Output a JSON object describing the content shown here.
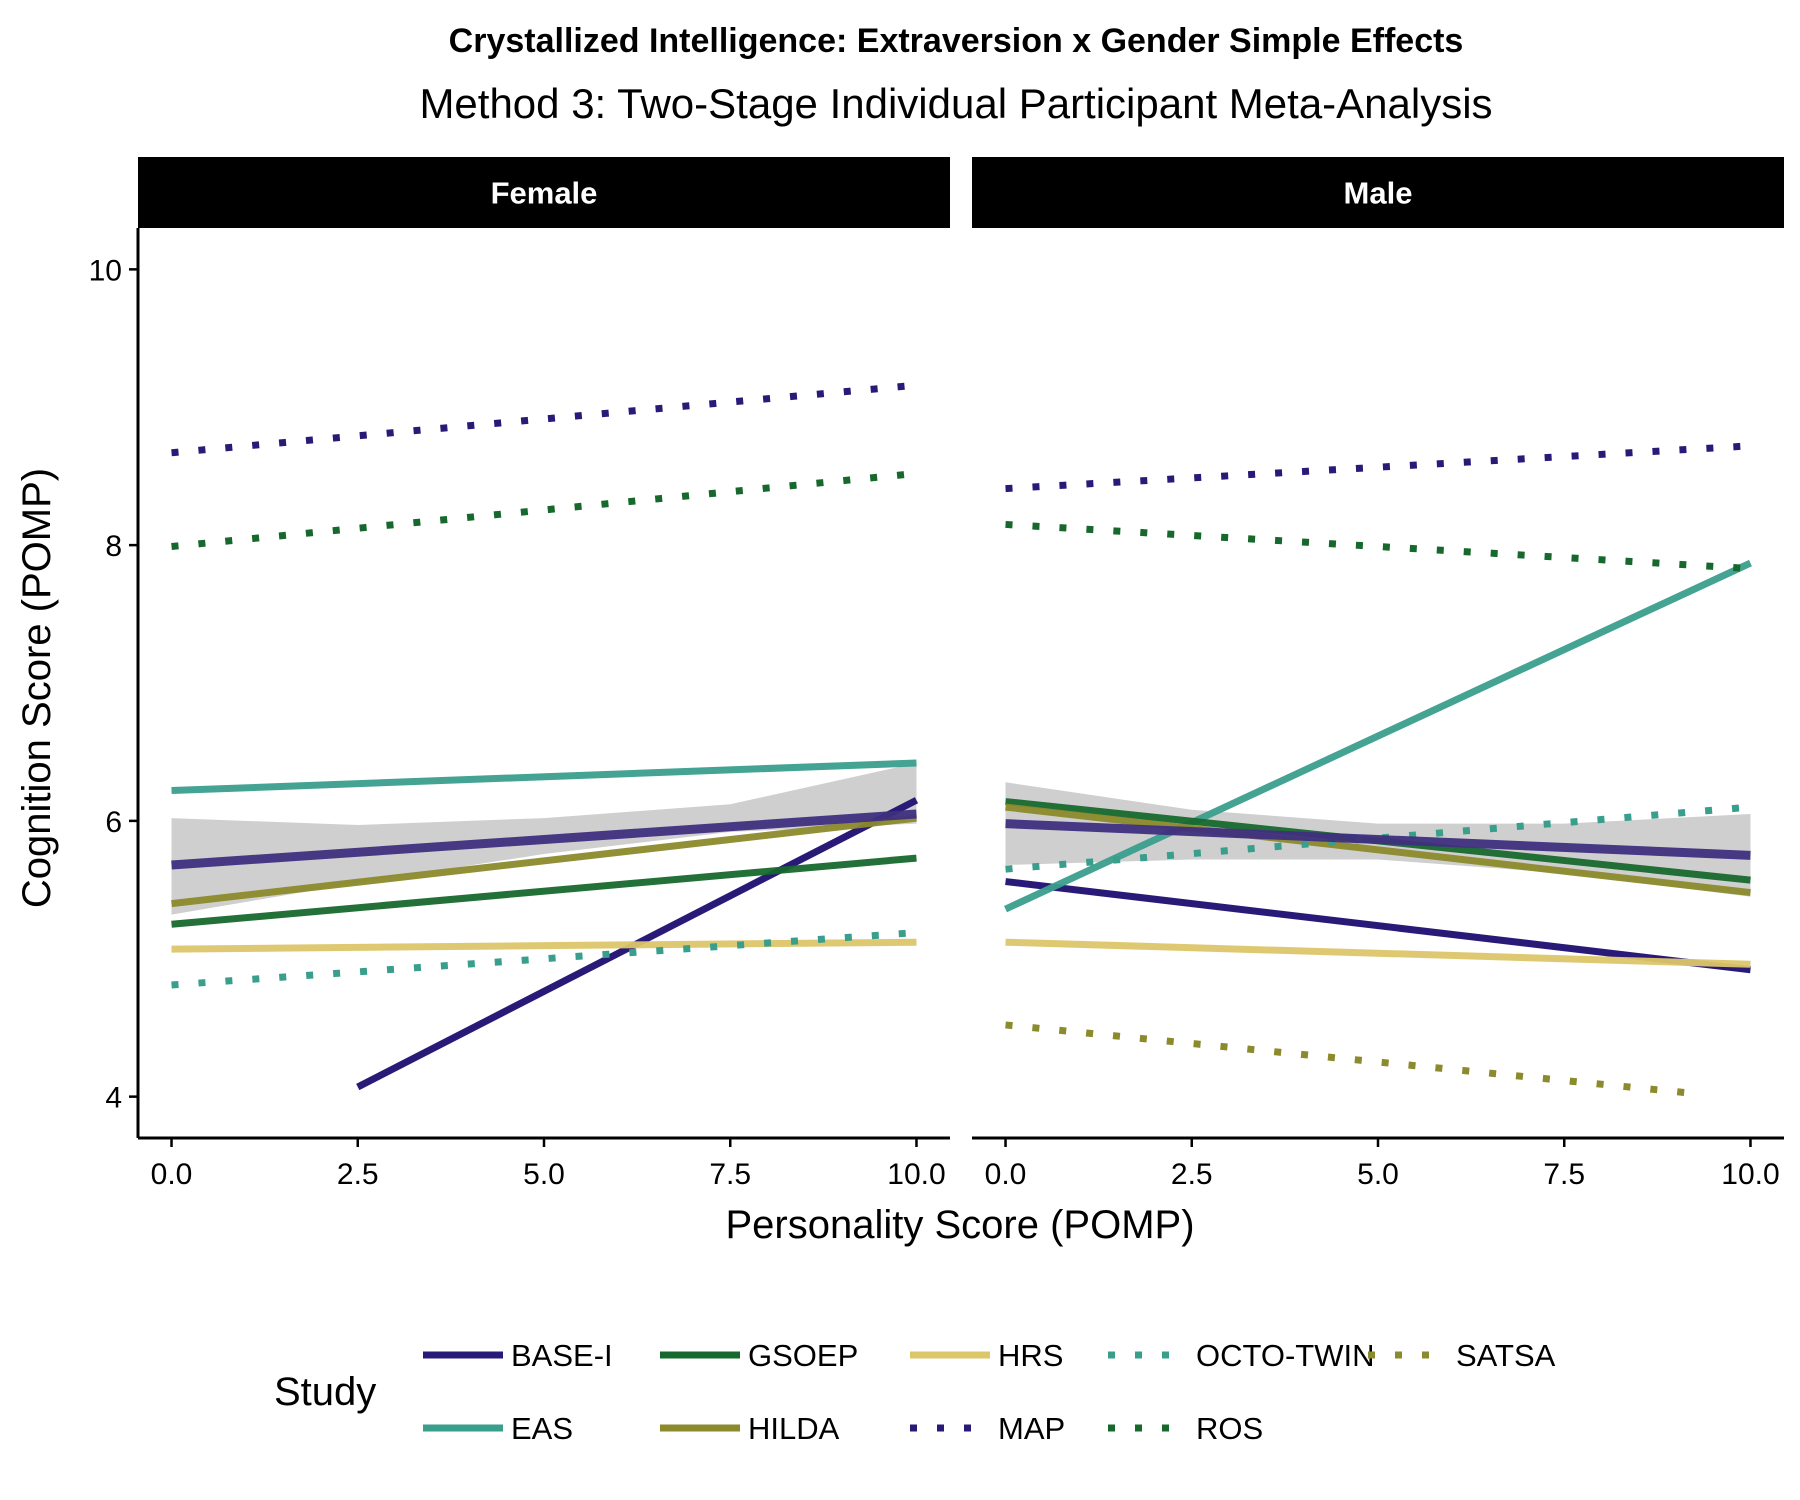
{
  "chart_data": {
    "type": "line",
    "title": "Crystallized Intelligence: Extraversion x Gender Simple Effects",
    "subtitle": "Method 3: Two-Stage Individual Participant Meta-Analysis",
    "xlabel": "Personality Score (POMP)",
    "ylabel": "Cognition Score (POMP)",
    "xlim": [
      -0.45,
      10.45
    ],
    "ylim": [
      3.7,
      10.3
    ],
    "x_ticks": [
      "0.0",
      "2.5",
      "5.0",
      "7.5",
      "10.0"
    ],
    "x_tick_values": [
      0,
      2.5,
      5,
      7.5,
      10
    ],
    "y_ticks": [
      "4",
      "6",
      "8",
      "10"
    ],
    "y_tick_values": [
      4,
      6,
      8,
      10
    ],
    "grid": false,
    "legend_title": "Study",
    "legend_position": "bottom",
    "panels": [
      {
        "name": "Female",
        "ribbon": {
          "x": [
            0,
            2.5,
            5,
            7.5,
            10
          ],
          "lower": [
            5.32,
            5.55,
            5.76,
            5.92,
            5.98
          ],
          "upper": [
            6.02,
            5.97,
            6.02,
            6.12,
            6.42
          ]
        },
        "pooled": {
          "x": [
            0,
            10
          ],
          "y": [
            5.68,
            6.05
          ]
        },
        "series": [
          {
            "name": "BASE-I",
            "x": [
              2.5,
              10
            ],
            "y": [
              4.07,
              6.15
            ]
          },
          {
            "name": "EAS",
            "x": [
              0,
              10
            ],
            "y": [
              6.22,
              6.42
            ]
          },
          {
            "name": "GSOEP",
            "x": [
              0,
              10
            ],
            "y": [
              5.25,
              5.73
            ]
          },
          {
            "name": "HILDA",
            "x": [
              0,
              10
            ],
            "y": [
              5.4,
              6.02
            ]
          },
          {
            "name": "HRS",
            "x": [
              0,
              10
            ],
            "y": [
              5.07,
              5.12
            ]
          },
          {
            "name": "MAP",
            "x": [
              0,
              10
            ],
            "y": [
              8.67,
              9.16
            ]
          },
          {
            "name": "OCTO-TWIN",
            "x": [
              0,
              10
            ],
            "y": [
              4.81,
              5.19
            ]
          },
          {
            "name": "ROS",
            "x": [
              0,
              10
            ],
            "y": [
              7.99,
              8.52
            ]
          }
        ]
      },
      {
        "name": "Male",
        "ribbon": {
          "x": [
            0,
            2.5,
            5,
            7.5,
            10
          ],
          "lower": [
            5.68,
            5.72,
            5.72,
            5.62,
            5.45
          ],
          "upper": [
            6.28,
            6.08,
            5.98,
            5.98,
            6.05
          ]
        },
        "pooled": {
          "x": [
            0,
            10
          ],
          "y": [
            5.98,
            5.75
          ]
        },
        "series": [
          {
            "name": "BASE-I",
            "x": [
              0,
              10
            ],
            "y": [
              5.56,
              4.92
            ]
          },
          {
            "name": "EAS",
            "x": [
              0,
              10
            ],
            "y": [
              5.36,
              7.87
            ]
          },
          {
            "name": "GSOEP",
            "x": [
              0,
              10
            ],
            "y": [
              6.14,
              5.57
            ]
          },
          {
            "name": "HILDA",
            "x": [
              0,
              10
            ],
            "y": [
              6.1,
              5.48
            ]
          },
          {
            "name": "HRS",
            "x": [
              0,
              10
            ],
            "y": [
              5.12,
              4.96
            ]
          },
          {
            "name": "MAP",
            "x": [
              0,
              10
            ],
            "y": [
              8.41,
              8.72
            ]
          },
          {
            "name": "OCTO-TWIN",
            "x": [
              0,
              10
            ],
            "y": [
              5.65,
              6.1
            ]
          },
          {
            "name": "ROS",
            "x": [
              0,
              10
            ],
            "y": [
              8.15,
              7.83
            ]
          },
          {
            "name": "SATSA",
            "x": [
              0,
              9.3
            ],
            "y": [
              4.52,
              4.02
            ]
          }
        ]
      }
    ],
    "legend": [
      {
        "name": "BASE-I",
        "color": "#2a1a78",
        "style": "solid"
      },
      {
        "name": "GSOEP",
        "color": "#17682d",
        "style": "solid"
      },
      {
        "name": "HRS",
        "color": "#dcc66a",
        "style": "solid"
      },
      {
        "name": "OCTO-TWIN",
        "color": "#3a9e8c",
        "style": "dotted"
      },
      {
        "name": "SATSA",
        "color": "#8b8a2c",
        "style": "dotted"
      },
      {
        "name": "EAS",
        "color": "#3a9e8c",
        "style": "solid"
      },
      {
        "name": "HILDA",
        "color": "#8b8a2c",
        "style": "solid"
      },
      {
        "name": "MAP",
        "color": "#2a1a78",
        "style": "dotted"
      },
      {
        "name": "ROS",
        "color": "#17682d",
        "style": "dotted"
      }
    ],
    "pooled_color": "#3f307f",
    "ribbon_color": "#cccccc"
  }
}
